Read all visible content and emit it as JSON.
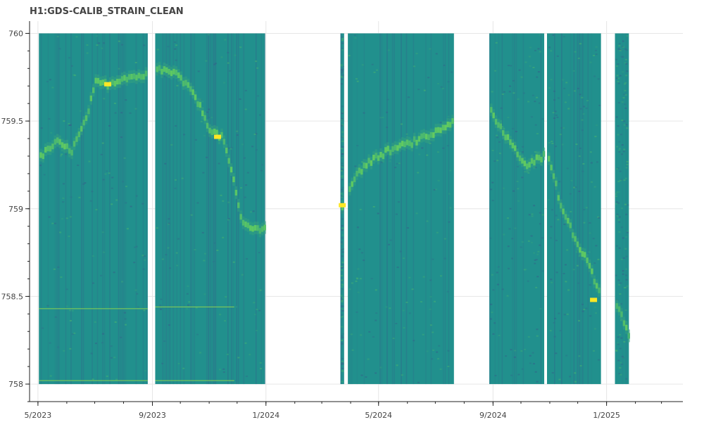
{
  "chart_data": {
    "type": "heatmap",
    "title": "H1:GDS-CALIB_STRAIN_CLEAN",
    "xlabel": "",
    "ylabel": "",
    "x_axis": {
      "type": "date",
      "range": [
        "2023-04-22",
        "2025-03-24"
      ],
      "ticks": [
        {
          "date": "2023-05-01",
          "label": "5/2023"
        },
        {
          "date": "2023-09-01",
          "label": "9/2023"
        },
        {
          "date": "2024-01-01",
          "label": "1/2024"
        },
        {
          "date": "2024-05-01",
          "label": "5/2024"
        },
        {
          "date": "2024-09-01",
          "label": "9/2024"
        },
        {
          "date": "2025-01-01",
          "label": "1/2025"
        }
      ]
    },
    "y_axis": {
      "range": [
        757.9,
        760.07
      ],
      "ticks": [
        {
          "value": 758,
          "label": "758"
        },
        {
          "value": 758.5,
          "label": "758.5"
        },
        {
          "value": 759,
          "label": "759"
        },
        {
          "value": 759.5,
          "label": "759.5"
        },
        {
          "value": 760,
          "label": "760"
        }
      ]
    },
    "data_y_range": [
      758,
      760
    ],
    "grid": true,
    "colormap": [
      "#440154",
      "#3b528b",
      "#21918c",
      "#5ec962",
      "#fde725"
    ],
    "background_color": "#21908d",
    "segments": [
      {
        "start": "2023-05-02",
        "end": "2023-08-27"
      },
      {
        "start": "2023-09-04",
        "end": "2023-12-31"
      },
      {
        "start": "2024-03-21",
        "end": "2024-03-25"
      },
      {
        "start": "2024-03-29",
        "end": "2024-07-21"
      },
      {
        "start": "2024-08-28",
        "end": "2024-10-26"
      },
      {
        "start": "2024-10-29",
        "end": "2024-12-26"
      },
      {
        "start": "2025-01-10",
        "end": "2025-01-25"
      }
    ],
    "peak_track": [
      {
        "date": "2023-05-03",
        "freq": 759.3
      },
      {
        "date": "2023-05-20",
        "freq": 759.38
      },
      {
        "date": "2023-06-05",
        "freq": 759.33
      },
      {
        "date": "2023-06-20",
        "freq": 759.5
      },
      {
        "date": "2023-07-01",
        "freq": 759.72
      },
      {
        "date": "2023-07-15",
        "freq": 759.71
      },
      {
        "date": "2023-08-01",
        "freq": 759.75
      },
      {
        "date": "2023-08-25",
        "freq": 759.76
      },
      {
        "date": "2023-09-05",
        "freq": 759.8
      },
      {
        "date": "2023-09-25",
        "freq": 759.77
      },
      {
        "date": "2023-10-15",
        "freq": 759.65
      },
      {
        "date": "2023-11-01",
        "freq": 759.45
      },
      {
        "date": "2023-11-15",
        "freq": 759.4
      },
      {
        "date": "2023-11-25",
        "freq": 759.18
      },
      {
        "date": "2023-12-05",
        "freq": 758.92
      },
      {
        "date": "2023-12-20",
        "freq": 758.88
      },
      {
        "date": "2023-12-30",
        "freq": 758.9
      },
      {
        "date": "2024-03-23",
        "freq": 759.02
      },
      {
        "date": "2024-03-30",
        "freq": 759.13
      },
      {
        "date": "2024-04-15",
        "freq": 759.25
      },
      {
        "date": "2024-05-10",
        "freq": 759.33
      },
      {
        "date": "2024-06-01",
        "freq": 759.37
      },
      {
        "date": "2024-06-25",
        "freq": 759.42
      },
      {
        "date": "2024-07-20",
        "freq": 759.5
      },
      {
        "date": "2024-08-29",
        "freq": 759.55
      },
      {
        "date": "2024-09-15",
        "freq": 759.4
      },
      {
        "date": "2024-10-05",
        "freq": 759.25
      },
      {
        "date": "2024-10-25",
        "freq": 759.3
      },
      {
        "date": "2024-10-30",
        "freq": 759.3
      },
      {
        "date": "2024-11-10",
        "freq": 759.05
      },
      {
        "date": "2024-11-25",
        "freq": 758.85
      },
      {
        "date": "2024-12-10",
        "freq": 758.7
      },
      {
        "date": "2024-12-25",
        "freq": 758.5
      },
      {
        "date": "2025-01-11",
        "freq": 758.45
      },
      {
        "date": "2025-01-24",
        "freq": 758.28
      }
    ],
    "bright_points": [
      {
        "date": "2023-07-15",
        "freq": 759.71
      },
      {
        "date": "2023-11-10",
        "freq": 759.41
      },
      {
        "date": "2024-03-23",
        "freq": 759.02
      },
      {
        "date": "2024-12-18",
        "freq": 758.48
      }
    ],
    "constant_lines": [
      {
        "start": "2023-05-02",
        "end": "2023-08-27",
        "freq": 758.43
      },
      {
        "start": "2023-09-04",
        "end": "2023-11-28",
        "freq": 758.44
      },
      {
        "start": "2023-05-02",
        "end": "2023-08-27",
        "freq": 758.02
      },
      {
        "start": "2023-09-04",
        "end": "2023-11-28",
        "freq": 758.02
      }
    ]
  }
}
